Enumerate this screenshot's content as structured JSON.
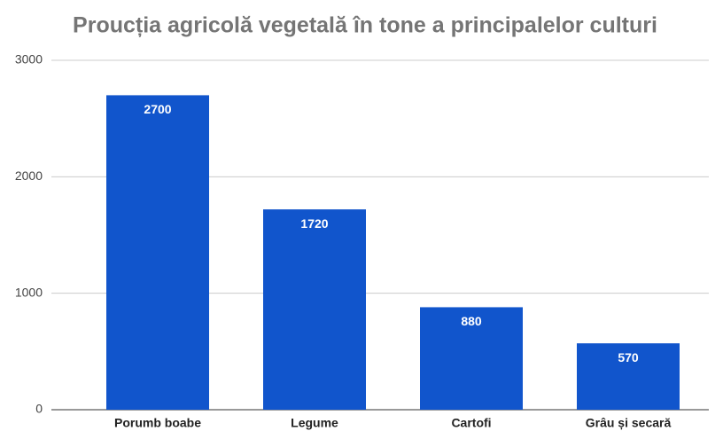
{
  "chart_data": {
    "type": "bar",
    "title": "Proucția agricolă vegetală în tone a principalelor culturi",
    "categories": [
      "Porumb boabe",
      "Legume",
      "Cartofi",
      "Grâu și secară"
    ],
    "values": [
      2700,
      1720,
      880,
      570
    ],
    "color": "#1155cc",
    "ylim": [
      0,
      3000
    ],
    "yticks": [
      0,
      1000,
      2000,
      3000
    ],
    "grid": true
  }
}
